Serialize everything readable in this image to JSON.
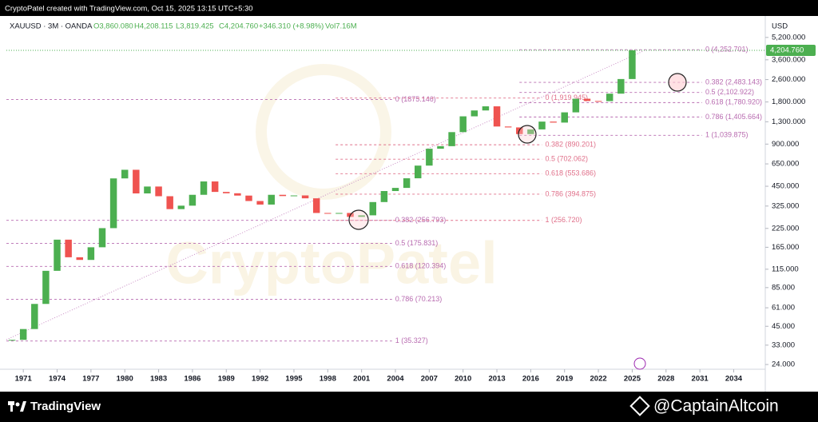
{
  "header": {
    "caption": "CryptoPatel created with TradingView.com, Oct 15, 2025 13:15 UTC+5:30"
  },
  "chart_data": {
    "type": "candlestick",
    "symbol": "XAUUSD · 3M · OANDA",
    "legend_values": [
      "O3,860.080",
      "H4,208.115",
      "L3,819.425",
      "C4,204.760",
      "+346.310 (+8.98%)",
      "Vol7.16M"
    ],
    "currency": "USD",
    "watermark": "CryptoPatel",
    "log_scale": true,
    "up_color": "#4caf50",
    "down_color": "#ef5350",
    "last_price": {
      "value": 4204.76,
      "label": "4,204.760"
    },
    "x": [
      1970,
      1971,
      1972,
      1973,
      1974,
      1975,
      1976,
      1977,
      1978,
      1979,
      1980,
      1981,
      1982,
      1983,
      1984,
      1985,
      1986,
      1987,
      1988,
      1989,
      1990,
      1991,
      1992,
      1993,
      1994,
      1995,
      1996,
      1997,
      1998,
      1999,
      2000,
      2001,
      2002,
      2003,
      2004,
      2005,
      2006,
      2007,
      2008,
      2009,
      2010,
      2011,
      2012,
      2013,
      2014,
      2015,
      2016,
      2017,
      2018,
      2019,
      2020,
      2021,
      2022,
      2023,
      2024,
      2025
    ],
    "values": [
      36,
      43,
      65,
      112,
      187,
      140,
      134,
      165,
      226,
      512,
      590,
      400,
      448,
      382,
      309,
      327,
      391,
      487,
      410,
      401,
      386,
      353,
      333,
      391,
      383,
      387,
      369,
      290,
      288,
      290,
      272,
      279,
      347,
      416,
      438,
      513,
      632,
      834,
      870,
      1096,
      1421,
      1565,
      1675,
      1202,
      1184,
      1061,
      1146,
      1303,
      1282,
      1517,
      1898,
      1829,
      1824,
      2063,
      2624,
      4204.76
    ],
    "xlim": [
      1969.5,
      2036.8
    ],
    "ylim": [
      22.2,
      7400
    ],
    "xticks": [
      1971,
      1974,
      1977,
      1980,
      1983,
      1986,
      1989,
      1992,
      1995,
      1998,
      2001,
      2004,
      2007,
      2010,
      2013,
      2016,
      2019,
      2022,
      2025,
      2028,
      2031,
      2034
    ],
    "yticks": [
      {
        "value": 5200,
        "label": "5,200.000"
      },
      {
        "value": 3600,
        "label": "3,600.000"
      },
      {
        "value": 2600,
        "label": "2,600.000"
      },
      {
        "value": 1800,
        "label": "1,800.000"
      },
      {
        "value": 1300,
        "label": "1,300.000"
      },
      {
        "value": 900,
        "label": "900.000"
      },
      {
        "value": 650,
        "label": "650.000"
      },
      {
        "value": 450,
        "label": "450.000"
      },
      {
        "value": 325,
        "label": "325.000"
      },
      {
        "value": 225,
        "label": "225.000"
      },
      {
        "value": 165,
        "label": "165.000"
      },
      {
        "value": 115,
        "label": "115.000"
      },
      {
        "value": 85,
        "label": "85.000"
      },
      {
        "value": 61,
        "label": "61.000"
      },
      {
        "value": 45,
        "label": "45.000"
      },
      {
        "value": 33,
        "label": "33.000"
      },
      {
        "value": 24,
        "label": "24.000"
      }
    ],
    "fib_levels": [
      {
        "value": 1875.146,
        "label": "0 (1875.146)",
        "from": 1969.5,
        "to": 2003.7,
        "color": "#b86bb0"
      },
      {
        "value": 256.793,
        "label": "0.382 (256.793)",
        "from": 1969.5,
        "to": 2003.7,
        "color": "#b86bb0"
      },
      {
        "value": 175.831,
        "label": "0.5 (175.831)",
        "from": 1969.5,
        "to": 2003.7,
        "color": "#b86bb0"
      },
      {
        "value": 120.394,
        "label": "0.618 (120.394)",
        "from": 1969.5,
        "to": 2003.7,
        "color": "#b86bb0"
      },
      {
        "value": 70.213,
        "label": "0.786 (70.213)",
        "from": 1969.5,
        "to": 2003.7,
        "color": "#b86bb0"
      },
      {
        "value": 35.327,
        "label": "1 (35.327)",
        "from": 1969.5,
        "to": 2003.7,
        "color": "#b86bb0"
      },
      {
        "value": 1919.945,
        "label": "0 (1,919.945)",
        "from": 1998.7,
        "to": 2017.0,
        "color": "#e0708a"
      },
      {
        "value": 890.201,
        "label": "0.382 (890.201)",
        "from": 1998.7,
        "to": 2017.0,
        "color": "#e0708a"
      },
      {
        "value": 702.062,
        "label": "0.5 (702.062)",
        "from": 1998.7,
        "to": 2017.0,
        "color": "#e0708a"
      },
      {
        "value": 553.686,
        "label": "0.618 (553.686)",
        "from": 1998.7,
        "to": 2017.0,
        "color": "#e0708a"
      },
      {
        "value": 394.875,
        "label": "0.786 (394.875)",
        "from": 1998.7,
        "to": 2017.0,
        "color": "#e0708a"
      },
      {
        "value": 256.72,
        "label": "1 (256.720)",
        "from": 1998.7,
        "to": 2017.0,
        "color": "#e0708a"
      },
      {
        "value": 4252.701,
        "label": "0 (4,252.701)",
        "from": 2015.0,
        "to": 2031.2,
        "color": "#b86bb0"
      },
      {
        "value": 2483.143,
        "label": "0.382 (2,483.143)",
        "from": 2015.0,
        "to": 2031.2,
        "color": "#b86bb0"
      },
      {
        "value": 2102.922,
        "label": "0.5 (2,102.922)",
        "from": 2015.0,
        "to": 2031.2,
        "color": "#b86bb0"
      },
      {
        "value": 1780.92,
        "label": "0.618 (1,780.920)",
        "from": 2015.0,
        "to": 2031.2,
        "color": "#b86bb0"
      },
      {
        "value": 1405.664,
        "label": "0.786 (1,405.664)",
        "from": 2015.0,
        "to": 2031.2,
        "color": "#b86bb0"
      },
      {
        "value": 1039.875,
        "label": "1 (1,039.875)",
        "from": 2015.0,
        "to": 2031.2,
        "color": "#b86bb0"
      }
    ]
  },
  "footer": {
    "brand": "TradingView",
    "credit": "@CaptainAltcoin"
  }
}
